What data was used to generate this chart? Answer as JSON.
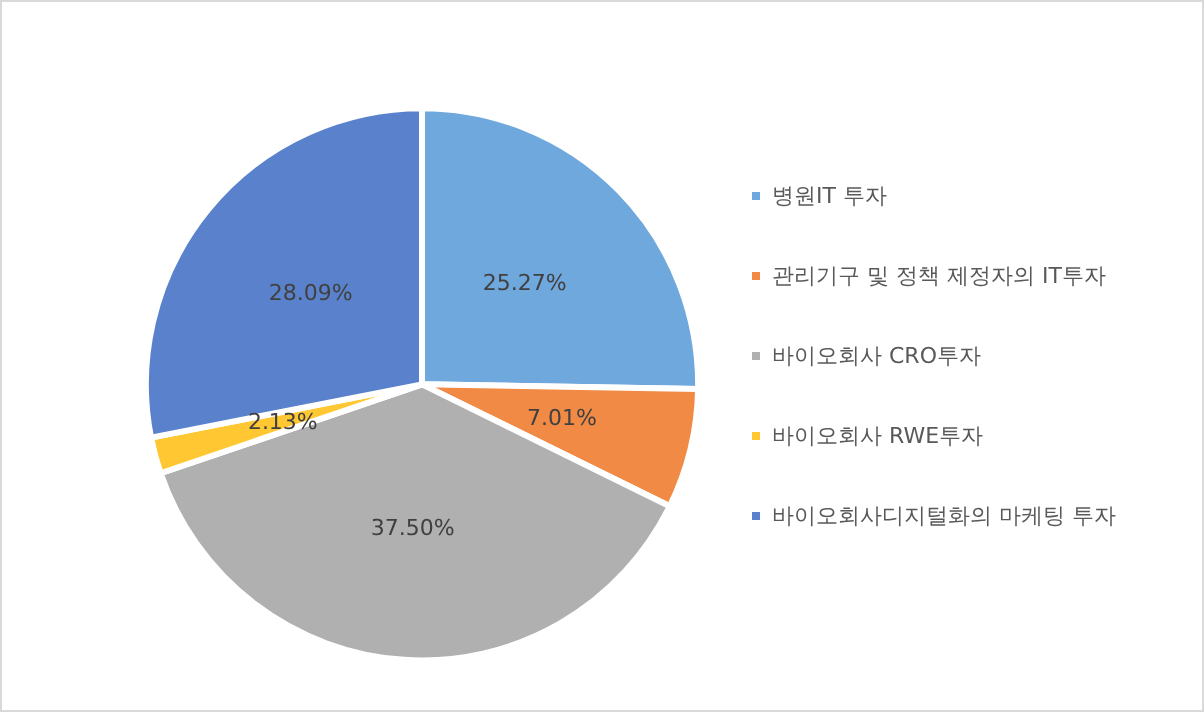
{
  "chart_data": {
    "type": "pie",
    "categories": [
      "병원IT 투자",
      "관리기구 및 정책 제정자의 IT투자",
      "바이오회사 CRO투자",
      "바이오회사 RWE투자",
      "바이오회사디지털화의 마케팅 투자"
    ],
    "values": [
      25.27,
      7.01,
      37.5,
      2.13,
      28.09
    ],
    "value_labels": [
      "25.27%",
      "7.01%",
      "37.50%",
      "2.13%",
      "28.09%"
    ],
    "colors": [
      "#6fa8dc",
      "#f08a45",
      "#b0b0b0",
      "#ffc732",
      "#5a82cc"
    ],
    "legend": "right"
  }
}
